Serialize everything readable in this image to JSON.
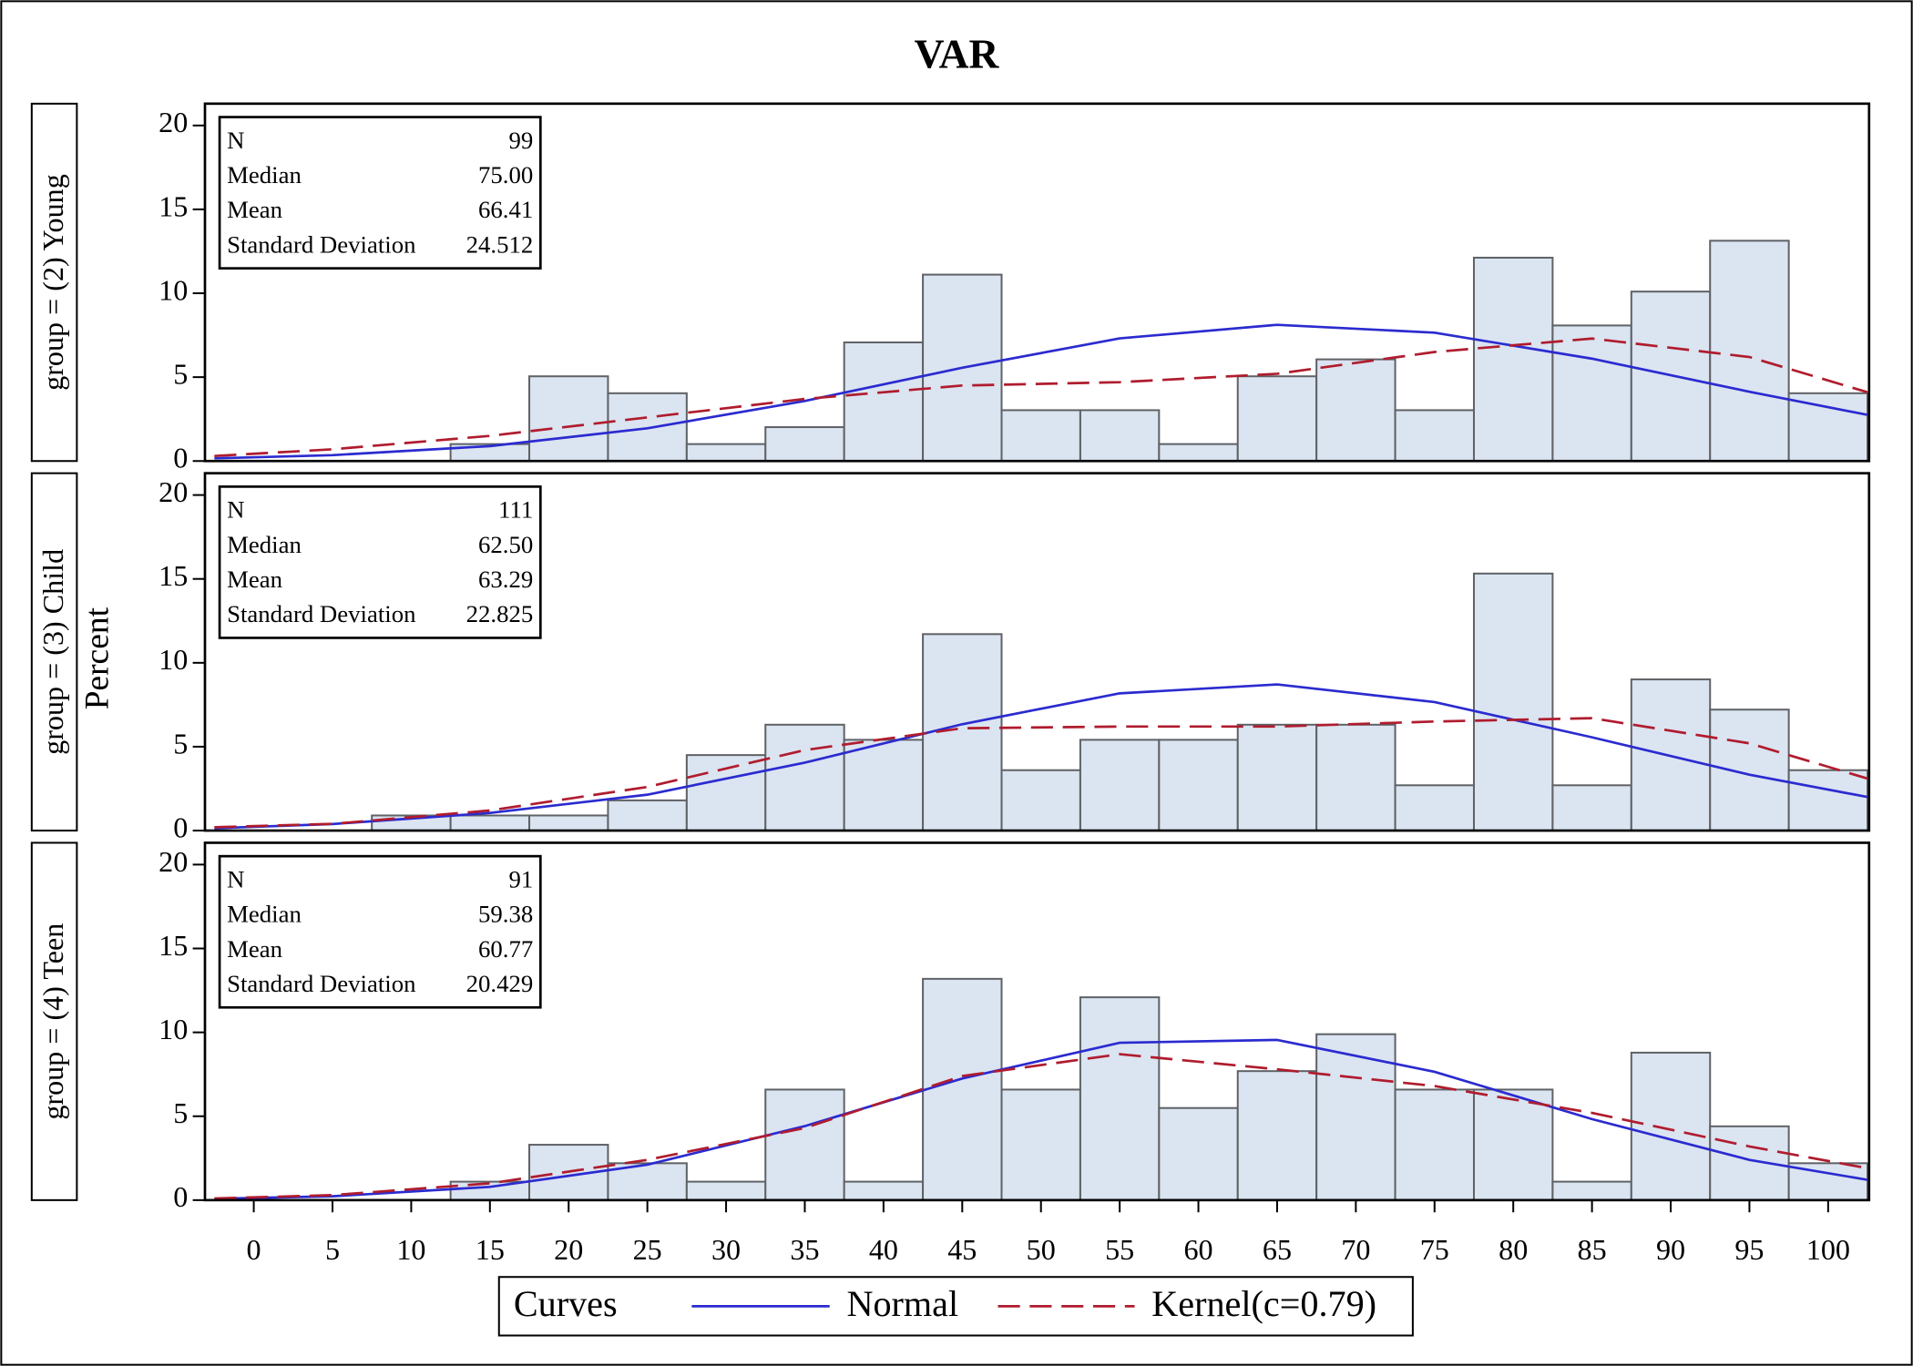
{
  "chart_data": {
    "type": "histogram",
    "title": "VAR",
    "y_label": "Percent",
    "bins": [
      -2.5,
      2.5,
      7.5,
      12.5,
      17.5,
      22.5,
      27.5,
      32.5,
      37.5,
      42.5,
      47.5,
      52.5,
      57.5,
      62.5,
      67.5,
      72.5,
      77.5,
      82.5,
      87.5,
      92.5,
      97.5,
      102.5
    ],
    "xlim": [
      -3.1,
      102.6
    ],
    "xticks": [
      0,
      5,
      10,
      15,
      20,
      25,
      30,
      35,
      40,
      45,
      50,
      55,
      60,
      65,
      70,
      75,
      80,
      85,
      90,
      95,
      100
    ],
    "ylim": [
      0,
      21.3
    ],
    "yticks": [
      0,
      5,
      10,
      15,
      20
    ],
    "bar_color": "#dbe4f1",
    "legend_title": "Curves",
    "curves": [
      {
        "name": "Normal",
        "color": "#2b2bd0",
        "dashed": false
      },
      {
        "name": "Kernel(c=0.79)",
        "color": "#b01c2e",
        "dashed": true
      }
    ],
    "curve_x": [
      -2.5,
      5,
      15,
      25,
      35,
      45,
      55,
      65,
      75,
      85,
      95,
      102.5
    ],
    "panels": [
      {
        "label": "group = (2) Young",
        "stats": [
          {
            "label": "N",
            "value": "99"
          },
          {
            "label": "Median",
            "value": "75.00"
          },
          {
            "label": "Mean",
            "value": "66.41"
          },
          {
            "label": "Standard Deviation",
            "value": "24.512"
          }
        ],
        "values": [
          0,
          0,
          0,
          1.01,
          5.05,
          4.04,
          1.01,
          2.02,
          7.07,
          11.11,
          3.03,
          3.03,
          1.01,
          5.05,
          6.06,
          3.03,
          12.12,
          8.08,
          10.1,
          13.13,
          4.04
        ],
        "normal": [
          0.16,
          0.35,
          0.89,
          1.95,
          3.58,
          5.56,
          7.31,
          8.12,
          7.65,
          6.1,
          4.13,
          2.75
        ],
        "kernel": [
          0.3,
          0.7,
          1.5,
          2.6,
          3.7,
          4.5,
          4.7,
          5.2,
          6.5,
          7.3,
          6.2,
          4.1
        ]
      },
      {
        "label": "group = (3) Child",
        "stats": [
          {
            "label": "N",
            "value": "111"
          },
          {
            "label": "Median",
            "value": "62.50"
          },
          {
            "label": "Mean",
            "value": "63.29"
          },
          {
            "label": "Standard Deviation",
            "value": "22.825"
          }
        ],
        "values": [
          0,
          0,
          0.9,
          0.9,
          0.9,
          1.8,
          4.5,
          6.31,
          5.41,
          11.71,
          3.6,
          5.41,
          5.41,
          6.31,
          6.31,
          2.7,
          15.32,
          2.7,
          9.01,
          7.21,
          3.6
        ],
        "normal": [
          0.14,
          0.39,
          1.05,
          2.14,
          4.05,
          6.34,
          8.18,
          8.71,
          7.66,
          5.56,
          3.33,
          2.0
        ],
        "kernel": [
          0.2,
          0.4,
          1.2,
          2.6,
          4.8,
          6.1,
          6.2,
          6.2,
          6.5,
          6.7,
          5.2,
          3.1
        ]
      },
      {
        "label": "group = (4) Teen",
        "stats": [
          {
            "label": "N",
            "value": "91"
          },
          {
            "label": "Median",
            "value": "59.38"
          },
          {
            "label": "Mean",
            "value": "60.77"
          },
          {
            "label": "Standard Deviation",
            "value": "20.429"
          }
        ],
        "values": [
          0,
          0,
          0,
          1.1,
          3.3,
          2.2,
          1.1,
          6.59,
          1.1,
          13.19,
          6.59,
          12.09,
          5.49,
          7.69,
          9.89,
          6.59,
          6.59,
          1.1,
          8.79,
          4.4,
          2.2
        ],
        "normal": [
          0.08,
          0.23,
          0.79,
          2.11,
          4.41,
          7.25,
          9.38,
          9.55,
          7.65,
          4.83,
          2.4,
          1.21
        ],
        "kernel": [
          0.1,
          0.3,
          1.0,
          2.4,
          4.3,
          7.4,
          8.7,
          7.8,
          6.8,
          5.2,
          3.2,
          1.9
        ]
      }
    ]
  }
}
